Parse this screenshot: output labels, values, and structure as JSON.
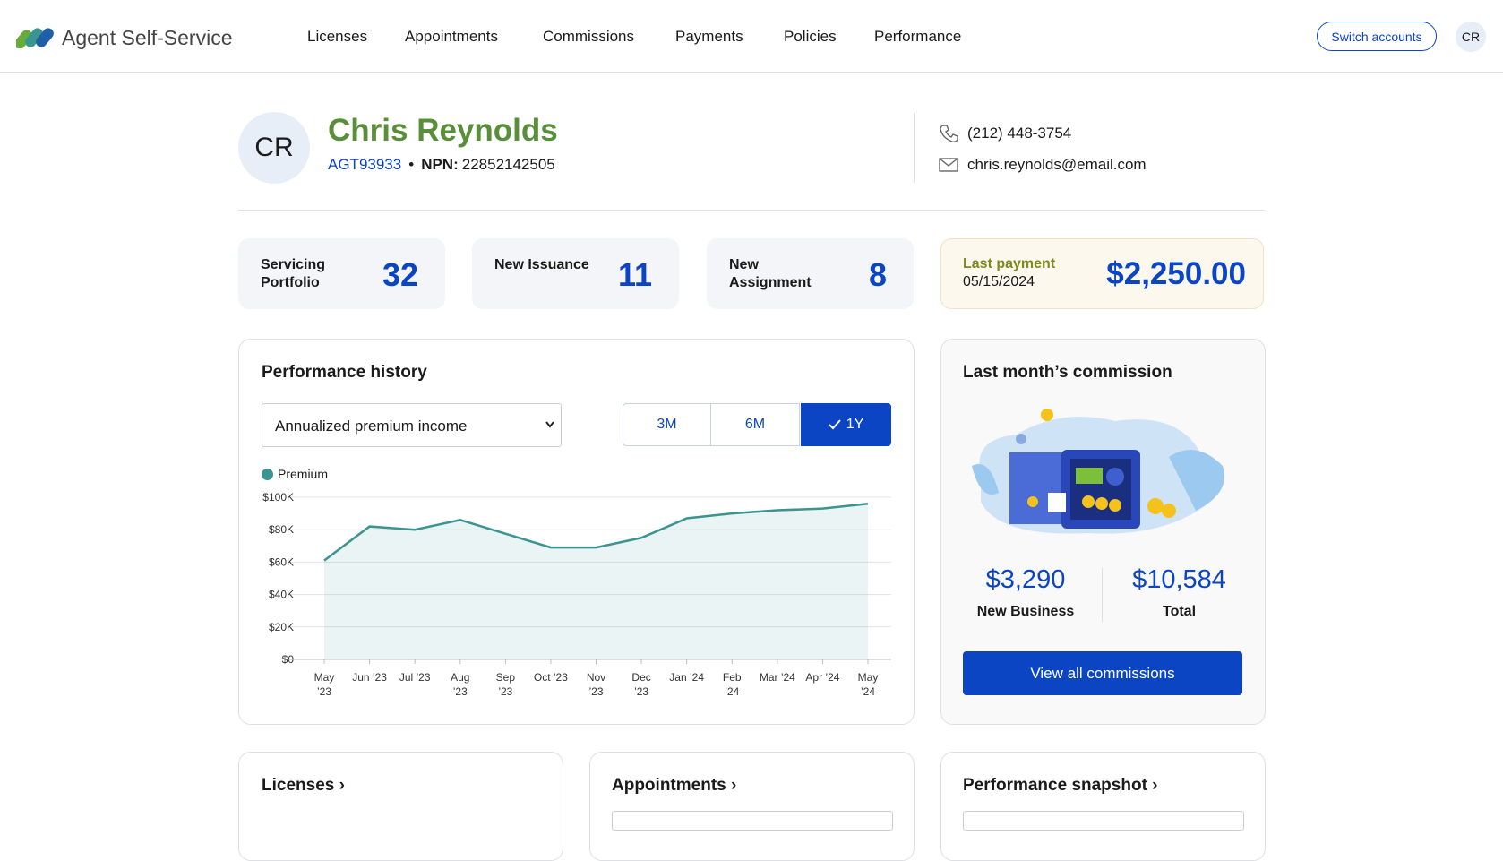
{
  "header": {
    "brand": "Agent Self-Service",
    "nav": [
      "Licenses",
      "Appointments",
      "Commissions",
      "Payments",
      "Policies",
      "Performance"
    ],
    "switch_accounts": "Switch accounts",
    "avatar": "CR"
  },
  "profile": {
    "initials": "CR",
    "name": "Chris Reynolds",
    "agent_id": "AGT93933",
    "npn_label": "NPN:",
    "npn": "22852142505",
    "phone": "(212) 448-3754",
    "email": "chris.reynolds@email.com"
  },
  "stats": [
    {
      "label": "Servicing Portfolio",
      "value": 32
    },
    {
      "label": "New Issuance",
      "value": 11
    },
    {
      "label": "New Assignment",
      "value": 8
    }
  ],
  "last_payment": {
    "label": "Last payment",
    "date": "05/15/2024",
    "amount": "$2,250.00"
  },
  "performance": {
    "title": "Performance history",
    "metric": "Annualized premium income",
    "ranges": [
      "3M",
      "6M",
      "1Y"
    ]
  },
  "chart_data": {
    "type": "line",
    "categories": [
      "May ’23",
      "Jun ’23",
      "Jul ’23",
      "Aug ’23",
      "Sep ’23",
      "Oct ’23",
      "Nov ’23",
      "Dec ’23",
      "Jan ’24",
      "Feb ’24",
      "Mar ’24",
      "Apr ’24",
      "May ’24"
    ],
    "series": [
      {
        "name": "Premium",
        "color": "#3a9490",
        "values": [
          61000,
          82000,
          80000,
          86000,
          77500,
          69000,
          69000,
          75000,
          87000,
          90000,
          92000,
          93000,
          96000
        ]
      }
    ],
    "ylim": [
      0,
      100000
    ],
    "yticks": [
      {
        "value": 0,
        "label": "$0"
      },
      {
        "value": 20000,
        "label": "$20K"
      },
      {
        "value": 40000,
        "label": "$40K"
      },
      {
        "value": 60000,
        "label": "$60K"
      },
      {
        "value": 80000,
        "label": "$80K"
      },
      {
        "value": 100000,
        "label": "$100K"
      }
    ],
    "grid": true,
    "area": true
  },
  "commission": {
    "title": "Last month’s commission",
    "new_business": "$3,290",
    "new_business_label": "New Business",
    "total": "$10,584",
    "total_label": "Total",
    "button": "View all commissions"
  },
  "sections": [
    "Licenses",
    "Appointments",
    "Performance snapshot"
  ]
}
